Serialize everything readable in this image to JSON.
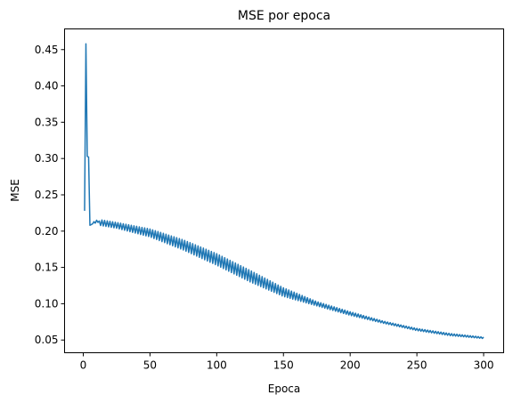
{
  "chart_data": {
    "type": "line",
    "title": "MSE por epoca",
    "xlabel": "Epoca",
    "ylabel": "MSE",
    "xlim": [
      -14,
      315
    ],
    "ylim": [
      0.0325,
      0.4785
    ],
    "x_ticks": [
      0,
      50,
      100,
      150,
      200,
      250,
      300
    ],
    "x_tick_labels": [
      "0",
      "50",
      "100",
      "150",
      "200",
      "250",
      "300"
    ],
    "y_ticks": [
      0.05,
      0.1,
      0.15,
      0.2,
      0.25,
      0.3,
      0.35,
      0.4,
      0.45
    ],
    "y_tick_labels": [
      "0.05",
      "0.10",
      "0.15",
      "0.20",
      "0.25",
      "0.30",
      "0.35",
      "0.40",
      "0.45"
    ],
    "grid": false,
    "series": [
      {
        "color": "#1f77b4",
        "x_start": 1,
        "x_end": 300,
        "initial_points": [
          [
            1,
            0.228
          ],
          [
            2,
            0.458
          ],
          [
            3,
            0.303
          ],
          [
            4,
            0.302
          ],
          [
            5,
            0.208
          ],
          [
            6,
            0.209
          ],
          [
            7,
            0.21
          ],
          [
            8,
            0.213
          ],
          [
            9,
            0.211
          ],
          [
            10,
            0.215
          ],
          [
            11,
            0.212
          ],
          [
            12,
            0.214
          ]
        ],
        "envelope_upper": [
          [
            12,
            0.216
          ],
          [
            25,
            0.212
          ],
          [
            50,
            0.203
          ],
          [
            75,
            0.188
          ],
          [
            100,
            0.169
          ],
          [
            125,
            0.146
          ],
          [
            150,
            0.122
          ],
          [
            175,
            0.103
          ],
          [
            200,
            0.089
          ],
          [
            225,
            0.076
          ],
          [
            250,
            0.066
          ],
          [
            275,
            0.059
          ],
          [
            300,
            0.054
          ]
        ],
        "envelope_lower": [
          [
            12,
            0.208
          ],
          [
            25,
            0.204
          ],
          [
            50,
            0.192
          ],
          [
            75,
            0.174
          ],
          [
            100,
            0.153
          ],
          [
            125,
            0.13
          ],
          [
            150,
            0.11
          ],
          [
            175,
            0.097
          ],
          [
            200,
            0.084
          ],
          [
            225,
            0.073
          ],
          [
            250,
            0.063
          ],
          [
            275,
            0.056
          ],
          [
            300,
            0.052
          ]
        ]
      }
    ]
  }
}
